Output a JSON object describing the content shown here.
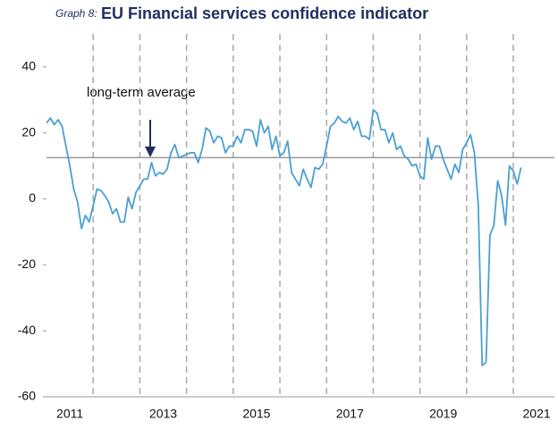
{
  "chart_data": {
    "type": "line",
    "title_prefix": "Graph 8:",
    "title": "EU Financial services confidence indicator",
    "annotation": "long-term average",
    "reference_line": 12.5,
    "xticks": [
      "2011",
      "2013",
      "2015",
      "2017",
      "2019",
      "2021"
    ],
    "series": [
      {
        "color": "#4a9fd4",
        "values": [
          23,
          24.5,
          22.5,
          24,
          22,
          16,
          10,
          3,
          -1,
          -9,
          -5,
          -7,
          -2,
          3,
          2.5,
          1,
          -1,
          -4.5,
          -3,
          -7,
          -7,
          0.5,
          -3,
          2,
          4,
          6,
          6,
          11,
          7,
          8,
          7.5,
          9,
          14,
          16.5,
          12.5,
          13,
          13.5,
          14,
          14,
          11,
          15,
          21.5,
          20.5,
          17,
          19,
          18.5,
          14,
          16,
          16,
          19,
          17,
          21,
          21,
          20.5,
          16,
          24,
          20,
          22,
          15,
          19,
          13,
          14,
          17.5,
          8,
          6,
          4,
          9,
          6,
          3.5,
          9.5,
          9,
          10.5,
          16,
          22,
          23,
          25,
          23.5,
          23,
          24.5,
          21,
          23.5,
          19,
          19,
          18,
          27,
          26,
          21,
          21,
          17,
          20,
          15,
          16,
          13,
          12,
          10,
          10.5,
          7,
          6,
          18.5,
          12,
          16,
          16,
          12,
          9,
          6,
          10.5,
          8,
          15,
          17,
          19.5,
          14,
          -2,
          -50.5,
          -49.5,
          -11,
          -8,
          5.5,
          1,
          -8,
          10,
          8.5,
          4.5,
          9.5
        ]
      }
    ],
    "ylim": [
      -60,
      50
    ],
    "yticks": [
      -60,
      -40,
      -20,
      0,
      20,
      40
    ],
    "year_grid": true
  }
}
